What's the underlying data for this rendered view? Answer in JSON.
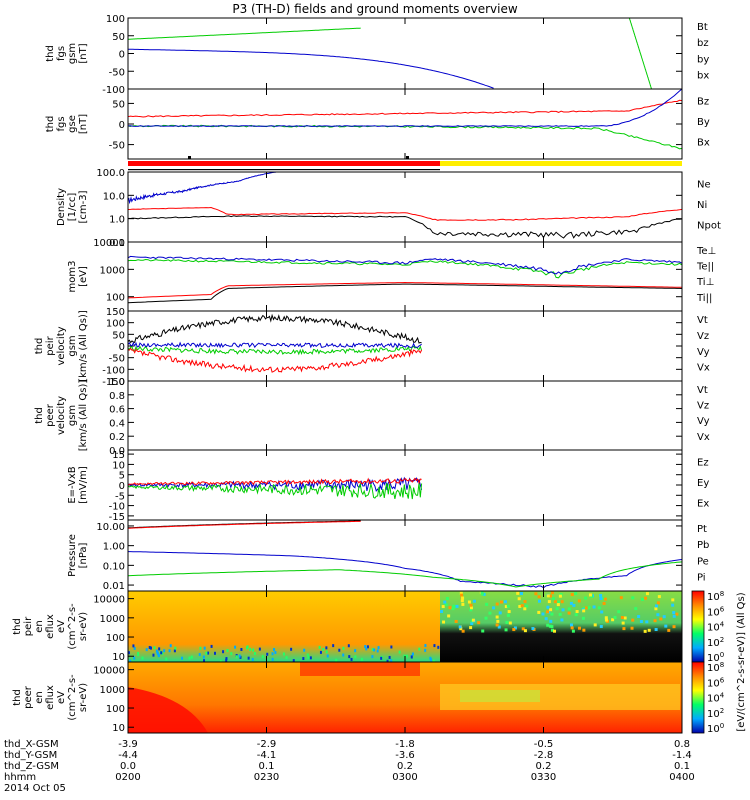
{
  "title": "P3 (TH-D) fields and ground moments overview",
  "colors": {
    "black": "#000000",
    "red": "#ff0000",
    "green": "#00cc00",
    "blue": "#0000cc",
    "yellow": "#ffee00"
  },
  "chart_data": {
    "type": "line",
    "x_axis": {
      "tick_labels_hhmm": [
        "0200",
        "0230",
        "0300",
        "0330",
        "0400"
      ],
      "rows": [
        {
          "label": "thd_X-GSM",
          "values": [
            "-3.9",
            "-2.9",
            "-1.8",
            "-0.5",
            "0.8"
          ]
        },
        {
          "label": "thd_Y-GSM",
          "values": [
            "-4.4",
            "-4.1",
            "-3.6",
            "-2.8",
            "-1.4"
          ]
        },
        {
          "label": "thd_Z-GSM",
          "values": [
            "0.0",
            "0.1",
            "0.2",
            "0.2",
            "0.1"
          ]
        },
        {
          "label": "hhmm",
          "values": [
            "0200",
            "0230",
            "0300",
            "0330",
            "0400"
          ]
        }
      ],
      "date": "2014 Oct 05"
    },
    "panels": [
      {
        "id": "fgs-gsm",
        "ylabel": [
          "thd",
          "fgs",
          "gsm",
          "[nT]"
        ],
        "yticks": [
          "100",
          "50",
          "0",
          "-50",
          "-100"
        ],
        "ylim": [
          -100,
          100
        ],
        "scale": "linear",
        "legend": [
          {
            "name": "Bt",
            "color": "#000000"
          },
          {
            "name": "bz",
            "color": "#ff0000"
          },
          {
            "name": "by",
            "color": "#00cc00"
          },
          {
            "name": "bx",
            "color": "#0000cc"
          }
        ]
      },
      {
        "id": "fgs-gse",
        "ylabel": [
          "thd",
          "fgs",
          "gse",
          "[nT]"
        ],
        "yticks": [
          "50",
          "0",
          "-50"
        ],
        "ylim": [
          -85,
          85
        ],
        "scale": "linear",
        "legend": [
          {
            "name": "Bz",
            "color": "#ff0000"
          },
          {
            "name": "By",
            "color": "#00cc00"
          },
          {
            "name": "Bx",
            "color": "#0000cc"
          }
        ]
      },
      {
        "id": "density",
        "ylabel": [
          "Density",
          "[1/cc]",
          "[cm-3]"
        ],
        "yticks": [
          "100.0",
          "10.0",
          "1.0",
          "0.1"
        ],
        "ylim": [
          0.1,
          100
        ],
        "scale": "log",
        "legend": [
          {
            "name": "Ne",
            "color": "#ff0000"
          },
          {
            "name": "Ni",
            "color": "#000000"
          },
          {
            "name": "Npot",
            "color": "#0000cc"
          }
        ]
      },
      {
        "id": "temperature",
        "ylabel": [
          "mom3",
          "[eV]"
        ],
        "yticks": [
          "10000",
          "1000",
          "100"
        ],
        "ylim": [
          30,
          10000
        ],
        "scale": "log",
        "legend": [
          {
            "name": "Te⊥",
            "color": "#ff0000"
          },
          {
            "name": "Te||",
            "color": "#000000"
          },
          {
            "name": "Ti⊥",
            "color": "#ffcc00"
          },
          {
            "name": "Ti||",
            "color": "#00cc00"
          }
        ]
      },
      {
        "id": "peir-velocity",
        "ylabel": [
          "thd",
          "peir",
          "velocity",
          "gsm",
          "[km/s (All Qs)]"
        ],
        "yticks": [
          "150",
          "100",
          "50",
          "0",
          "-50",
          "-100",
          "-150"
        ],
        "ylim": [
          -150,
          150
        ],
        "scale": "linear",
        "legend": [
          {
            "name": "Vt",
            "color": "#000000"
          },
          {
            "name": "Vz",
            "color": "#ff0000"
          },
          {
            "name": "Vy",
            "color": "#00cc00"
          },
          {
            "name": "Vx",
            "color": "#0000cc"
          }
        ]
      },
      {
        "id": "peer-velocity",
        "ylabel": [
          "thd",
          "peer",
          "velocity",
          "gsm",
          "[km/s (All Qs)]"
        ],
        "yticks": [
          "1.0",
          "0.8",
          "0.6",
          "0.4",
          "0.2",
          "0.0"
        ],
        "ylim": [
          0,
          1
        ],
        "scale": "linear",
        "legend": [
          {
            "name": "Vt",
            "color": "#000000"
          },
          {
            "name": "Vz",
            "color": "#ff0000"
          },
          {
            "name": "Vy",
            "color": "#00cc00"
          },
          {
            "name": "Vx",
            "color": "#0000cc"
          }
        ]
      },
      {
        "id": "efield",
        "ylabel": [
          "E=-VxB",
          "[mV/m]"
        ],
        "yticks": [
          "15",
          "10",
          "5",
          "0",
          "-5",
          "-10",
          "-15"
        ],
        "ylim": [
          -17,
          17
        ],
        "scale": "linear",
        "legend": [
          {
            "name": "Ez",
            "color": "#ff0000"
          },
          {
            "name": "Ey",
            "color": "#00cc00"
          },
          {
            "name": "Ex",
            "color": "#0000cc"
          }
        ]
      },
      {
        "id": "pressure",
        "ylabel": [
          "Pressure",
          "[nPa]"
        ],
        "yticks": [
          "10.00",
          "1.00",
          "0.10",
          "0.01"
        ],
        "ylim": [
          0.005,
          20
        ],
        "scale": "log",
        "legend": [
          {
            "name": "Pt",
            "color": "#000000"
          },
          {
            "name": "Pb",
            "color": "#ff0000"
          },
          {
            "name": "Pe",
            "color": "#00cc00"
          },
          {
            "name": "Pi",
            "color": "#0000cc"
          }
        ]
      },
      {
        "id": "peir-spectrogram",
        "type": "heatmap",
        "ylabel": [
          "thd",
          "peir",
          "en",
          "eflux",
          "eV",
          "(cm^2-s-",
          "sr-eV)"
        ],
        "yticks": [
          "10000",
          "1000",
          "100",
          "10"
        ],
        "ylim": [
          5,
          25000
        ],
        "scale": "log"
      },
      {
        "id": "peer-spectrogram",
        "type": "heatmap",
        "ylabel": [
          "thd",
          "peer",
          "en",
          "eflux",
          "eV",
          "(cm^2-s-",
          "sr-eV)"
        ],
        "yticks": [
          "10000",
          "1000",
          "100",
          "10"
        ],
        "ylim": [
          5,
          25000
        ],
        "scale": "log"
      }
    ],
    "colorbar": {
      "label": "[eV/(cm^2-s-sr-eV)] (All Qs)",
      "tick_labels": [
        "10^8",
        "10^6",
        "10^4",
        "10^2",
        "10^0"
      ],
      "tick_labels_second": [
        "10^8",
        "10^6",
        "10^4",
        "10^2",
        "10^0"
      ]
    }
  }
}
